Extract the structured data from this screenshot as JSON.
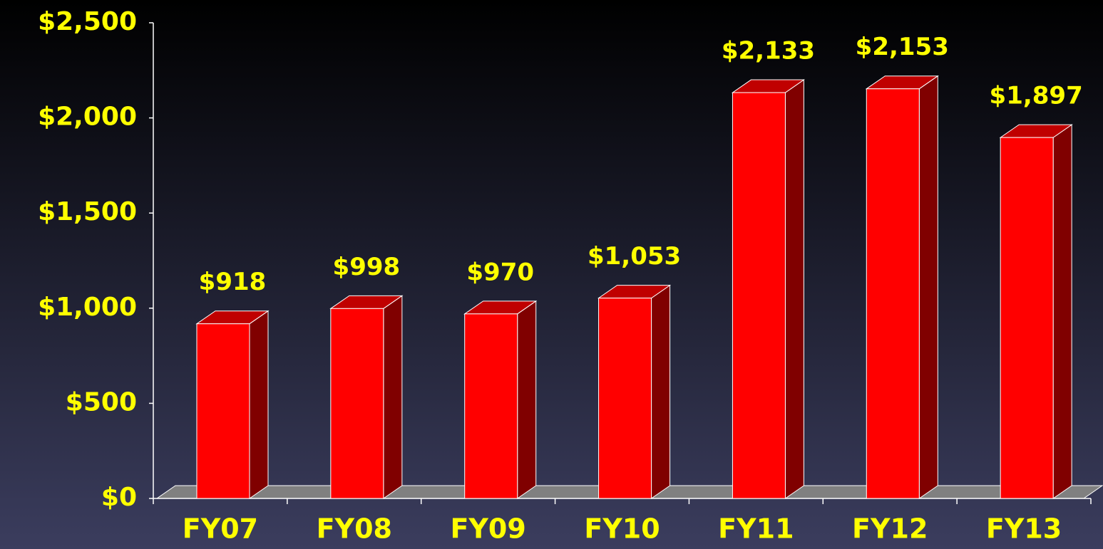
{
  "chart_data": {
    "type": "bar3d",
    "categories": [
      "FY07",
      "FY08",
      "FY09",
      "FY10",
      "FY11",
      "FY12",
      "FY13"
    ],
    "values": [
      918,
      998,
      970,
      1053,
      2133,
      2153,
      1897
    ],
    "value_labels": [
      "$918",
      "$998",
      "$970",
      "$1,053",
      "$2,133",
      "$2,153",
      "$1,897"
    ],
    "color": "#ff0000",
    "ylim": [
      0,
      2500
    ],
    "yticks": [
      {
        "value": 0,
        "label": "$0"
      },
      {
        "value": 500,
        "label": "$500"
      },
      {
        "value": 1000,
        "label": "$1,000"
      },
      {
        "value": 1500,
        "label": "$1,500"
      },
      {
        "value": 2000,
        "label": "$2,000"
      },
      {
        "value": 2500,
        "label": "$2,500"
      }
    ]
  }
}
